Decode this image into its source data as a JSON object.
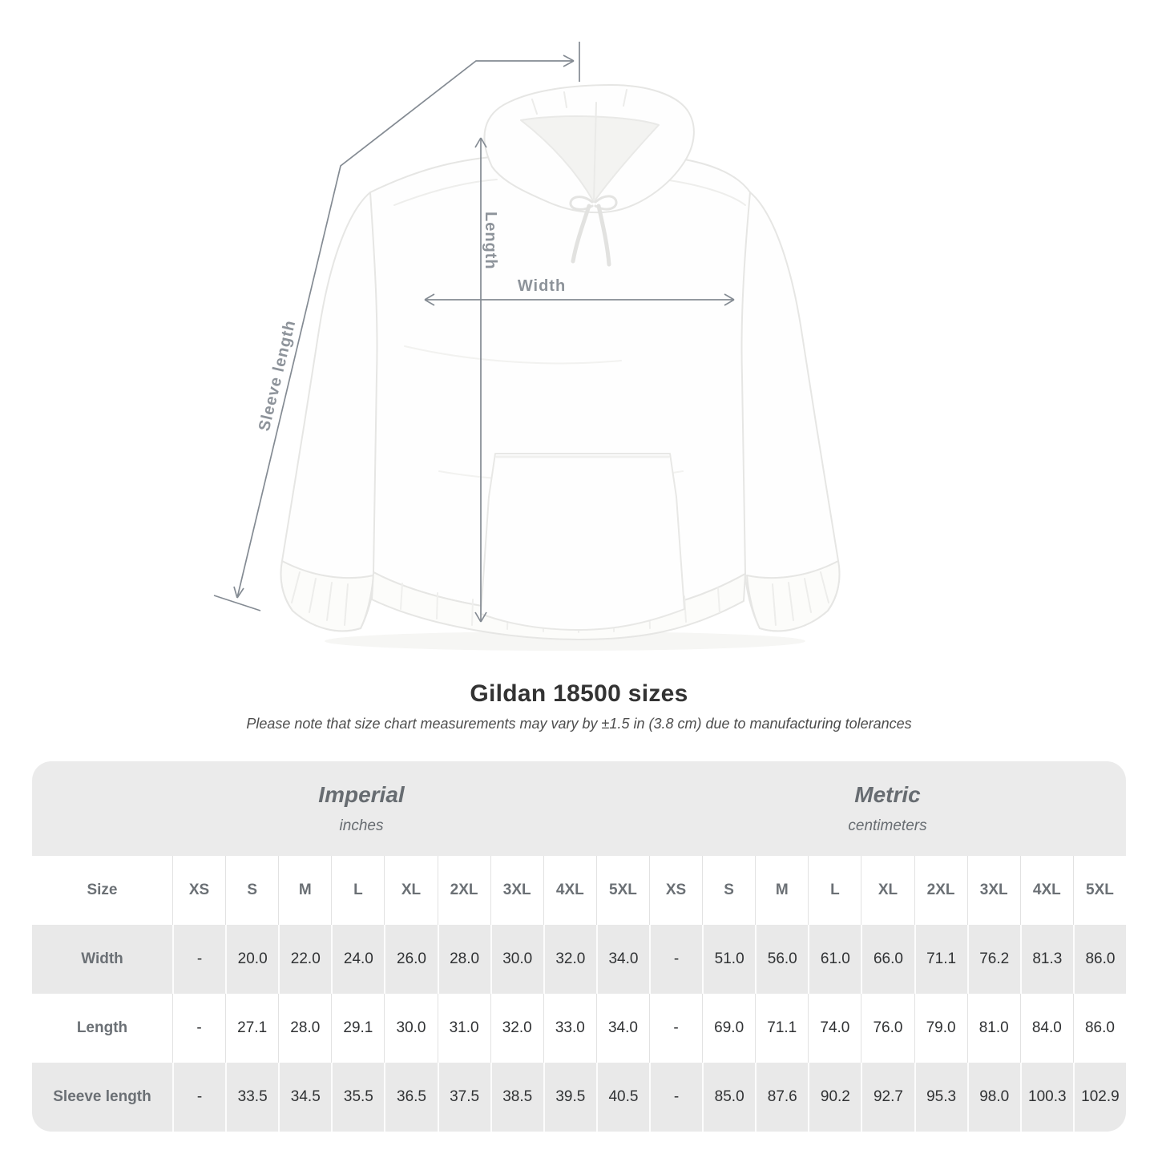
{
  "page": {
    "title": "Gildan 18500 sizes",
    "note": "Please note that size chart measurements may vary by ±1.5 in (3.8 cm) due to manufacturing tolerances"
  },
  "diagram": {
    "labels": {
      "length": "Length",
      "width": "Width",
      "sleeve_length": "Sleeve length"
    }
  },
  "table": {
    "size_header": "Size",
    "unit_groups": [
      {
        "label": "Imperial",
        "sublabel": "inches"
      },
      {
        "label": "Metric",
        "sublabel": "centimeters"
      }
    ],
    "sizes": [
      "XS",
      "S",
      "M",
      "L",
      "XL",
      "2XL",
      "3XL",
      "4XL",
      "5XL"
    ],
    "rows": [
      {
        "label": "Width",
        "imperial": [
          "-",
          "20.0",
          "22.0",
          "24.0",
          "26.0",
          "28.0",
          "30.0",
          "32.0",
          "34.0"
        ],
        "metric": [
          "-",
          "51.0",
          "56.0",
          "61.0",
          "66.0",
          "71.1",
          "76.2",
          "81.3",
          "86.0"
        ]
      },
      {
        "label": "Length",
        "imperial": [
          "-",
          "27.1",
          "28.0",
          "29.1",
          "30.0",
          "31.0",
          "32.0",
          "33.0",
          "34.0"
        ],
        "metric": [
          "-",
          "69.0",
          "71.1",
          "74.0",
          "76.0",
          "79.0",
          "81.0",
          "84.0",
          "86.0"
        ]
      },
      {
        "label": "Sleeve length",
        "imperial": [
          "-",
          "33.5",
          "34.5",
          "35.5",
          "36.5",
          "37.5",
          "38.5",
          "39.5",
          "40.5"
        ],
        "metric": [
          "-",
          "85.0",
          "87.6",
          "90.2",
          "92.7",
          "95.3",
          "98.0",
          "100.3",
          "102.9"
        ]
      }
    ]
  },
  "colors": {
    "measurement_line": "#848b93",
    "measurement_label": "#8d939a",
    "banner_bg": "#ebebeb",
    "shaded_row_bg": "#e9e9e9",
    "header_text": "#6b7075",
    "value_text": "#303234"
  },
  "chart_data": {
    "type": "table",
    "title": "Gildan 18500 sizes",
    "columns": [
      "XS",
      "S",
      "M",
      "L",
      "XL",
      "2XL",
      "3XL",
      "4XL",
      "5XL"
    ],
    "measurements": [
      {
        "name": "Width",
        "imperial_inches": [
          null,
          20.0,
          22.0,
          24.0,
          26.0,
          28.0,
          30.0,
          32.0,
          34.0
        ],
        "metric_cm": [
          null,
          51.0,
          56.0,
          61.0,
          66.0,
          71.1,
          76.2,
          81.3,
          86.0
        ]
      },
      {
        "name": "Length",
        "imperial_inches": [
          null,
          27.1,
          28.0,
          29.1,
          30.0,
          31.0,
          32.0,
          33.0,
          34.0
        ],
        "metric_cm": [
          null,
          69.0,
          71.1,
          74.0,
          76.0,
          79.0,
          81.0,
          84.0,
          86.0
        ]
      },
      {
        "name": "Sleeve length",
        "imperial_inches": [
          null,
          33.5,
          34.5,
          35.5,
          36.5,
          37.5,
          38.5,
          39.5,
          40.5
        ],
        "metric_cm": [
          null,
          85.0,
          87.6,
          90.2,
          92.7,
          95.3,
          98.0,
          100.3,
          102.9
        ]
      }
    ]
  }
}
